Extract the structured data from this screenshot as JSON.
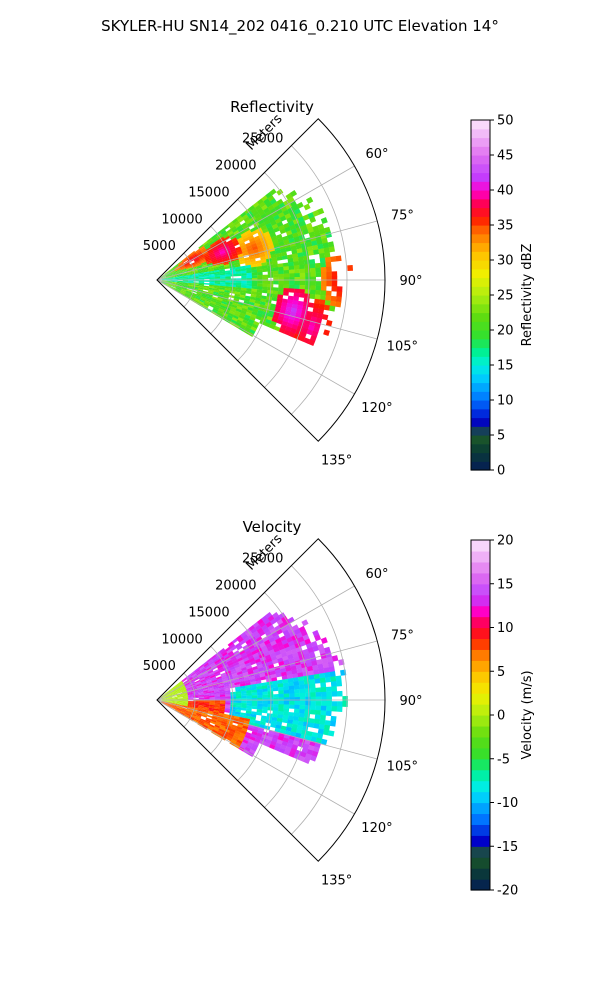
{
  "figure": {
    "title": "SKYLER-HU  SN14_202  0416_0.210 UTC Elevation 14°"
  },
  "chart_data": [
    {
      "type": "heatmap",
      "title": "Reflectivity",
      "range_label": "Meters",
      "range_ticks": [
        5000,
        10000,
        15000,
        20000,
        25000
      ],
      "range_max": 30000,
      "azimuth_ticks": [
        "60°",
        "75°",
        "90°",
        "105°",
        "120°",
        "135°"
      ],
      "azimuth_range": [
        45,
        135
      ],
      "colorbar": {
        "label": "Reflectivity dBZ",
        "min": 0,
        "max": 50,
        "ticks": [
          0,
          5,
          10,
          15,
          20,
          25,
          30,
          35,
          40,
          45,
          50
        ]
      },
      "echo_cells": [
        {
          "azimuth": 60,
          "range_m": 5000,
          "value": 38
        },
        {
          "azimuth": 66,
          "range_m": 9000,
          "value": 40
        },
        {
          "azimuth": 71,
          "range_m": 13000,
          "value": 35
        },
        {
          "azimuth": 89,
          "range_m": 24000,
          "value": 38
        },
        {
          "azimuth": 102,
          "range_m": 18000,
          "value": 42
        },
        {
          "azimuth": 106,
          "range_m": 21000,
          "value": 40
        }
      ]
    },
    {
      "type": "heatmap",
      "title": "Velocity",
      "range_label": "Meters",
      "range_ticks": [
        5000,
        10000,
        15000,
        20000,
        25000
      ],
      "range_max": 30000,
      "azimuth_ticks": [
        "60°",
        "75°",
        "90°",
        "105°",
        "120°",
        "135°"
      ],
      "azimuth_range": [
        45,
        135
      ],
      "colorbar": {
        "label": "Velocity (m/s)",
        "min": -20,
        "max": 20,
        "ticks": [
          -20,
          -15,
          -10,
          -5,
          0,
          5,
          10,
          15,
          20
        ]
      }
    }
  ]
}
